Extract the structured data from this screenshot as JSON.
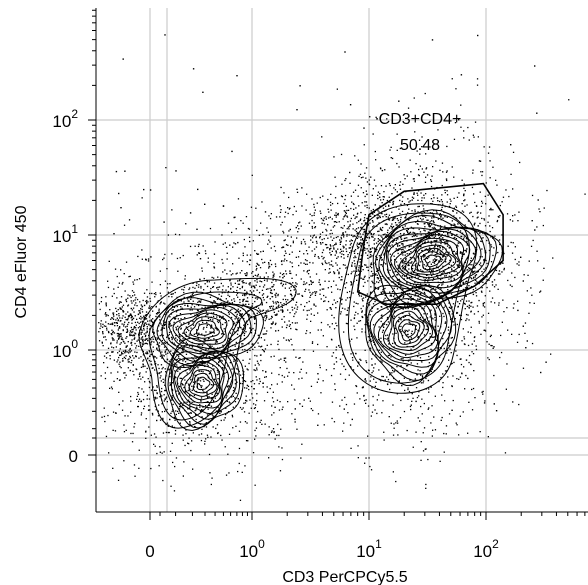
{
  "chart_data": {
    "type": "contour",
    "plot_kind": "flow cytometry contour plot with outlier dots",
    "xlabel": "CD3 PerCPCy5.5",
    "ylabel": "CD4 eFluor 450",
    "x_scale": "biexponential (linear near 0, log above)",
    "y_scale": "biexponential (linear near 0, log above)",
    "x_ticks": [
      {
        "value": "0",
        "label": "0"
      },
      {
        "value": "1",
        "label_base": "10",
        "label_exp": "0"
      },
      {
        "value": "10",
        "label_base": "10",
        "label_exp": "1"
      },
      {
        "value": "100",
        "label_base": "10",
        "label_exp": "2"
      }
    ],
    "y_ticks": [
      {
        "value": "0",
        "label": "0"
      },
      {
        "value": "1",
        "label_base": "10",
        "label_exp": "0"
      },
      {
        "value": "10",
        "label_base": "10",
        "label_exp": "1"
      },
      {
        "value": "100",
        "label_base": "10",
        "label_exp": "2"
      }
    ],
    "populations": [
      {
        "id": "cd3-negative-cd4-low",
        "cx": 0.3,
        "cy": 1.5,
        "note": "upper density peak of CD3- cluster"
      },
      {
        "id": "cd3-negative-cd4-neg",
        "cx": 0.28,
        "cy": 0.45,
        "note": "lower density peak of CD3- cluster"
      },
      {
        "id": "cd3-pos-cd4-pos",
        "cx": 35,
        "cy": 6,
        "note": "CD3+CD4+ peak"
      },
      {
        "id": "cd3-pos-cd4-neg",
        "cx": 22,
        "cy": 1.5,
        "note": "CD3+CD4- peak"
      }
    ],
    "gates": [
      {
        "name": "CD3+CD4+",
        "value": "50.48",
        "polygon_data": [
          [
            10,
            15
          ],
          [
            20,
            24
          ],
          [
            95,
            28
          ],
          [
            140,
            15
          ],
          [
            140,
            6
          ],
          [
            80,
            3.6
          ],
          [
            38,
            2.5
          ],
          [
            14,
            2.5
          ],
          [
            8,
            3.2
          ],
          [
            9,
            8
          ]
        ]
      }
    ],
    "grid": true,
    "colors": {
      "contour": "#000000",
      "grid": "#cccccc",
      "axis": "#000000",
      "background": "#ffffff"
    }
  }
}
